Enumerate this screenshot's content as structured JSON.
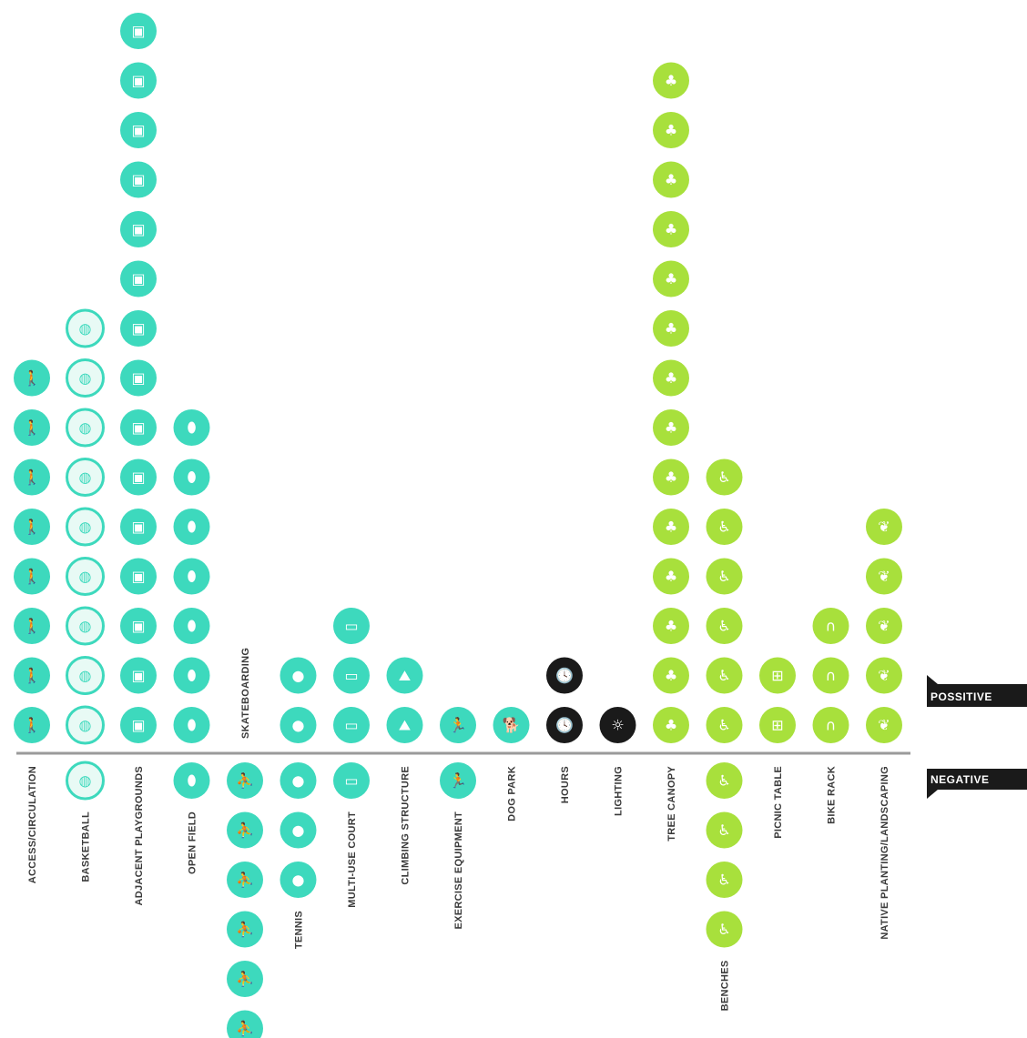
{
  "chart_data": {
    "type": "dot-column",
    "positive_label": "POSSITIVE",
    "negative_label": "NEGATIVE",
    "colors": {
      "teal": "#3dd9bd",
      "teal_light": "#e8faf5",
      "green": "#a8e03c",
      "black": "#1a1a1a",
      "axis": "#9a9a9a"
    },
    "categories": [
      {
        "label": "ACCESS/CIRCULATION",
        "positive": 8,
        "negative": 0,
        "color": "teal",
        "style": "filled",
        "icon": "walking-person-icon",
        "glyph": "🚶"
      },
      {
        "label": "BASKETBALL",
        "positive": 9,
        "negative": 1,
        "color": "teal",
        "style": "outline",
        "icon": "basketball-icon",
        "glyph": "◍"
      },
      {
        "label": "ADJACENT PLAYGROUNDS",
        "positive": 15,
        "negative": 0,
        "color": "teal",
        "style": "filled",
        "icon": "playground-icon",
        "glyph": "▣"
      },
      {
        "label": "OPEN FIELD",
        "positive": 7,
        "negative": 1,
        "color": "teal",
        "style": "filled",
        "icon": "football-icon",
        "glyph": "⬮"
      },
      {
        "label": "SKATEBOARDING",
        "positive": 0,
        "negative": 6,
        "color": "teal",
        "style": "filled",
        "icon": "skater-icon",
        "glyph": "⛹"
      },
      {
        "label": "TENNIS",
        "positive": 2,
        "negative": 3,
        "color": "teal",
        "style": "filled",
        "icon": "tennis-ball-icon",
        "glyph": "●"
      },
      {
        "label": "MULTI-USE COURT",
        "positive": 3,
        "negative": 1,
        "color": "teal",
        "style": "filled",
        "icon": "court-icon",
        "glyph": "▭"
      },
      {
        "label": "CLIMBING STRUCTURE",
        "positive": 2,
        "negative": 0,
        "color": "teal",
        "style": "filled",
        "icon": "climbing-icon",
        "glyph": "⛰"
      },
      {
        "label": "EXERCISE EQUIPMENT",
        "positive": 1,
        "negative": 1,
        "color": "teal",
        "style": "filled",
        "icon": "exercise-icon",
        "glyph": "🏃"
      },
      {
        "label": "DOG PARK",
        "positive": 1,
        "negative": 0,
        "color": "teal",
        "style": "filled",
        "icon": "dog-icon",
        "glyph": "🐕"
      },
      {
        "label": "HOURS",
        "positive": 2,
        "negative": 0,
        "color": "black",
        "style": "filled",
        "icon": "clock-icon",
        "glyph": "🕓"
      },
      {
        "label": "LIGHTING",
        "positive": 1,
        "negative": 0,
        "color": "black",
        "style": "filled",
        "icon": "light-icon",
        "glyph": "☼"
      },
      {
        "label": "TREE CANOPY",
        "positive": 14,
        "negative": 0,
        "color": "green",
        "style": "filled",
        "icon": "tree-icon",
        "glyph": "♣"
      },
      {
        "label": "BENCHES",
        "positive": 6,
        "negative": 4,
        "color": "green",
        "style": "filled",
        "icon": "bench-sitter-icon",
        "glyph": "♿"
      },
      {
        "label": "PICNIC TABLE",
        "positive": 2,
        "negative": 0,
        "color": "green",
        "style": "filled",
        "icon": "picnic-table-icon",
        "glyph": "⊞"
      },
      {
        "label": "BIKE RACK",
        "positive": 3,
        "negative": 0,
        "color": "green",
        "style": "filled",
        "icon": "bike-rack-icon",
        "glyph": "∩"
      },
      {
        "label": "NATIVE PLANTING/LANDSCAPING",
        "positive": 5,
        "negative": 0,
        "color": "green",
        "style": "filled",
        "icon": "leaf-icon",
        "glyph": "❦"
      }
    ]
  }
}
